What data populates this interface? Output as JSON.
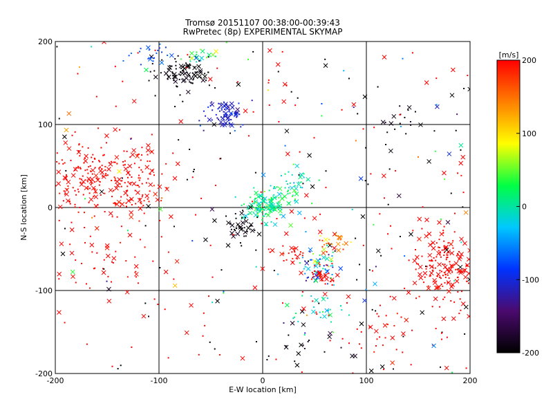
{
  "chart_data": {
    "type": "scatter",
    "title": "Tromsø 20151107 00:38:00-00:39:43",
    "subtitle": "RwPretec (8p) EXPERIMENTAL SKYMAP",
    "xlabel": "E-W location [km]",
    "ylabel": "N-S location [km]",
    "xlim": [
      -200,
      200
    ],
    "ylim": [
      -200,
      200
    ],
    "xticks": [
      "-200",
      "-100",
      "0",
      "100",
      "200"
    ],
    "yticks": [
      "-200",
      "-100",
      "0",
      "100",
      "200"
    ],
    "grid": true,
    "colorbar": {
      "label": "[m/s]",
      "range": [
        -200,
        200
      ],
      "ticks": [
        "-200",
        "-100",
        "0",
        "100",
        "200"
      ],
      "placement": "right",
      "colormap": [
        "#000000",
        "#4b0a6e",
        "#0033ff",
        "#00c8ff",
        "#00ff44",
        "#ffff00",
        "#ff7f00",
        "#ff0000"
      ]
    },
    "marker_types": [
      "cross",
      "dot"
    ],
    "clusters": [
      {
        "x": -160,
        "y": 35,
        "sx": 35,
        "sy": 22,
        "n": 260,
        "v": 200,
        "vs": 5
      },
      {
        "x": -120,
        "y": 20,
        "sx": 15,
        "sy": 15,
        "n": 40,
        "v": 195,
        "vs": 10
      },
      {
        "x": 175,
        "y": -70,
        "sx": 18,
        "sy": 22,
        "n": 170,
        "v": 200,
        "vs": 5
      },
      {
        "x": -75,
        "y": 160,
        "sx": 14,
        "sy": 10,
        "n": 90,
        "v": -195,
        "vs": 8
      },
      {
        "x": -35,
        "y": 112,
        "sx": 10,
        "sy": 9,
        "n": 80,
        "v": -110,
        "vs": 12
      },
      {
        "x": -105,
        "y": 185,
        "sx": 10,
        "sy": 8,
        "n": 22,
        "v": -75,
        "vs": 15
      },
      {
        "x": 2,
        "y": 2,
        "sx": 9,
        "sy": 9,
        "n": 130,
        "v": 10,
        "vs": 25
      },
      {
        "x": 28,
        "y": 28,
        "sx": 14,
        "sy": 13,
        "n": 50,
        "v": 0,
        "vs": 30
      },
      {
        "x": -25,
        "y": -25,
        "sx": 10,
        "sy": 12,
        "n": 45,
        "v": -195,
        "vs": 5
      },
      {
        "x": 55,
        "y": -70,
        "sx": 10,
        "sy": 13,
        "n": 65,
        "v": -50,
        "vs": 70
      },
      {
        "x": 58,
        "y": -82,
        "sx": 8,
        "sy": 6,
        "n": 35,
        "v": 200,
        "vs": 5
      },
      {
        "x": 30,
        "y": -55,
        "sx": 9,
        "sy": 6,
        "n": 25,
        "v": 200,
        "vs": 10
      },
      {
        "x": 68,
        "y": -40,
        "sx": 8,
        "sy": 8,
        "n": 30,
        "v": 140,
        "vs": 40
      },
      {
        "x": -55,
        "y": 185,
        "sx": 15,
        "sy": 8,
        "n": 20,
        "v": 50,
        "vs": 40
      },
      {
        "x": 55,
        "y": -125,
        "sx": 18,
        "sy": 15,
        "n": 25,
        "v": 0,
        "vs": 30
      },
      {
        "x": 110,
        "y": -150,
        "sx": 22,
        "sy": 28,
        "n": 40,
        "v": 200,
        "vs": 10
      },
      {
        "x": -150,
        "y": -65,
        "sx": 22,
        "sy": 22,
        "n": 40,
        "v": 200,
        "vs": 5
      },
      {
        "x": 135,
        "y": 100,
        "sx": 15,
        "sy": 12,
        "n": 18,
        "v": -190,
        "vs": 10
      },
      {
        "x": 40,
        "y": -170,
        "sx": 25,
        "sy": 18,
        "n": 25,
        "v": -190,
        "vs": 10
      },
      {
        "x": 0,
        "y": 0,
        "sx": 115,
        "sy": 115,
        "n": 320,
        "v": 0,
        "vs": 0,
        "random_v": true
      }
    ]
  }
}
